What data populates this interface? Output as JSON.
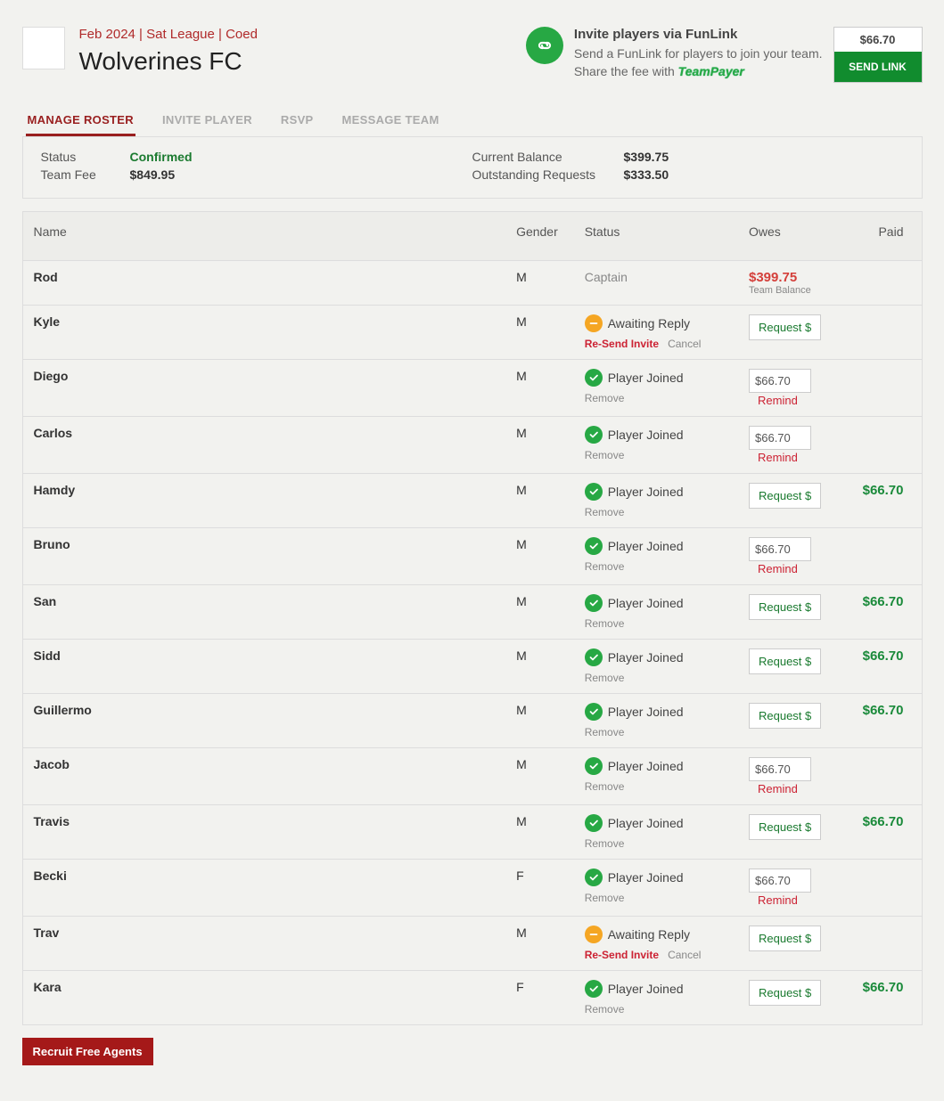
{
  "header": {
    "meta": "Feb 2024 | Sat League | Coed",
    "team_name": "Wolverines FC",
    "funlink_title": "Invite players via FunLink",
    "funlink_desc1": "Send a FunLink for players to join your team.",
    "funlink_desc2": "Share the fee with ",
    "teampayer_label": "TeamPayer",
    "send_amount": "$66.70",
    "send_link_label": "SEND LINK"
  },
  "tabs": {
    "manage": "MANAGE ROSTER",
    "invite": "INVITE PLAYER",
    "rsvp": "RSVP",
    "message": "MESSAGE TEAM"
  },
  "status": {
    "label_status": "Status",
    "value_status": "Confirmed",
    "label_fee": "Team Fee",
    "value_fee": "$849.95",
    "label_balance": "Current Balance",
    "value_balance": "$399.75",
    "label_outstanding": "Outstanding Requests",
    "value_outstanding": "$333.50"
  },
  "columns": {
    "name": "Name",
    "gender": "Gender",
    "status": "Status",
    "owes": "Owes",
    "paid": "Paid"
  },
  "labels": {
    "captain": "Captain",
    "awaiting": "Awaiting Reply",
    "joined": "Player Joined",
    "resend": "Re-Send Invite",
    "cancel": "Cancel",
    "remove": "Remove",
    "request": "Request $",
    "remind": "Remind",
    "team_balance": "Team Balance",
    "recruit": "Recruit Free Agents"
  },
  "roster": [
    {
      "name": "Rod",
      "gender": "M",
      "status": "captain",
      "owes_type": "balance",
      "owes": "$399.75",
      "paid": ""
    },
    {
      "name": "Kyle",
      "gender": "M",
      "status": "awaiting",
      "owes_type": "request",
      "owes": "",
      "paid": ""
    },
    {
      "name": "Diego",
      "gender": "M",
      "status": "joined",
      "owes_type": "amount",
      "owes": "$66.70",
      "paid": ""
    },
    {
      "name": "Carlos",
      "gender": "M",
      "status": "joined",
      "owes_type": "amount",
      "owes": "$66.70",
      "paid": ""
    },
    {
      "name": "Hamdy",
      "gender": "M",
      "status": "joined",
      "owes_type": "request",
      "owes": "",
      "paid": "$66.70"
    },
    {
      "name": "Bruno",
      "gender": "M",
      "status": "joined",
      "owes_type": "amount",
      "owes": "$66.70",
      "paid": ""
    },
    {
      "name": "San",
      "gender": "M",
      "status": "joined",
      "owes_type": "request",
      "owes": "",
      "paid": "$66.70"
    },
    {
      "name": "Sidd",
      "gender": "M",
      "status": "joined",
      "owes_type": "request",
      "owes": "",
      "paid": "$66.70"
    },
    {
      "name": "Guillermo",
      "gender": "M",
      "status": "joined",
      "owes_type": "request",
      "owes": "",
      "paid": "$66.70"
    },
    {
      "name": "Jacob",
      "gender": "M",
      "status": "joined",
      "owes_type": "amount",
      "owes": "$66.70",
      "paid": ""
    },
    {
      "name": "Travis",
      "gender": "M",
      "status": "joined",
      "owes_type": "request",
      "owes": "",
      "paid": "$66.70"
    },
    {
      "name": "Becki",
      "gender": "F",
      "status": "joined",
      "owes_type": "amount",
      "owes": "$66.70",
      "paid": ""
    },
    {
      "name": "Trav",
      "gender": "M",
      "status": "awaiting",
      "owes_type": "request",
      "owes": "",
      "paid": ""
    },
    {
      "name": "Kara",
      "gender": "F",
      "status": "joined",
      "owes_type": "request",
      "owes": "",
      "paid": "$66.70"
    }
  ],
  "colors": {
    "brand_red": "#991f1f",
    "green": "#27a844",
    "amber": "#f5a623"
  }
}
